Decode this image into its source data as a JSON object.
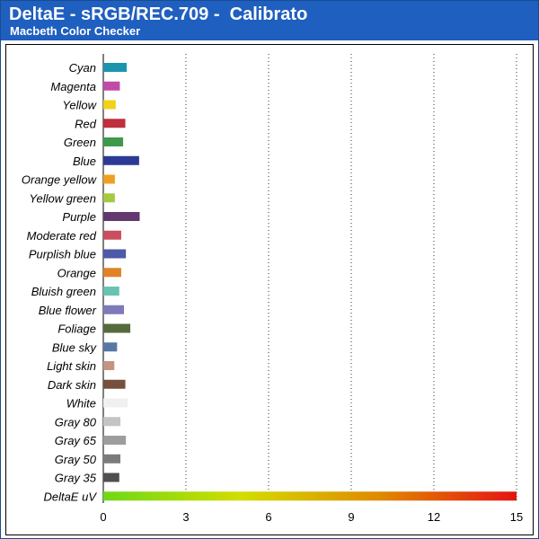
{
  "header": {
    "title": "DeltaE - sRGB/REC.709 -  Calibrato",
    "subtitle": "Macbeth Color Checker"
  },
  "colors": {
    "header_background": "#1f5fbf",
    "gridline": "#333333"
  },
  "chart_data": {
    "type": "bar",
    "orientation": "horizontal",
    "title": "",
    "xlabel": "",
    "ylabel": "",
    "xlim": [
      0,
      15
    ],
    "xticks": [
      "0",
      "3",
      "6",
      "9",
      "12",
      "15"
    ],
    "grid": "vertical dotted",
    "categories": [
      "Cyan",
      "Magenta",
      "Yellow",
      "Red",
      "Green",
      "Blue",
      "Orange yellow",
      "Yellow green",
      "Purple",
      "Moderate red",
      "Purplish blue",
      "Orange",
      "Bluish green",
      "Blue flower",
      "Foliage",
      "Blue sky",
      "Light skin",
      "Dark skin",
      "White",
      "Gray 80",
      "Gray 65",
      "Gray 50",
      "Gray 35",
      "DeltaE uV"
    ],
    "values": [
      0.85,
      0.6,
      0.45,
      0.8,
      0.72,
      1.3,
      0.42,
      0.42,
      1.32,
      0.65,
      0.82,
      0.65,
      0.58,
      0.75,
      0.98,
      0.5,
      0.4,
      0.8,
      0.88,
      0.62,
      0.82,
      0.62,
      0.58,
      15
    ],
    "bar_colors": [
      "#1b95ad",
      "#c04aa8",
      "#f0d21a",
      "#c02f3c",
      "#3d9a4a",
      "#2c3a96",
      "#f0a020",
      "#a6c940",
      "#63386e",
      "#c94e60",
      "#4c5aa8",
      "#e08326",
      "#68c3b2",
      "#7e7ab9",
      "#566b3d",
      "#5877a4",
      "#c69281",
      "#75503c",
      "#f0f0f0",
      "#c4c4c4",
      "#9d9d9d",
      "#7b7b7b",
      "#4f4f4f"
    ],
    "last_bar_gradient": [
      "#6ed817",
      "#d3dd00",
      "#e08a00",
      "#e41313"
    ]
  }
}
